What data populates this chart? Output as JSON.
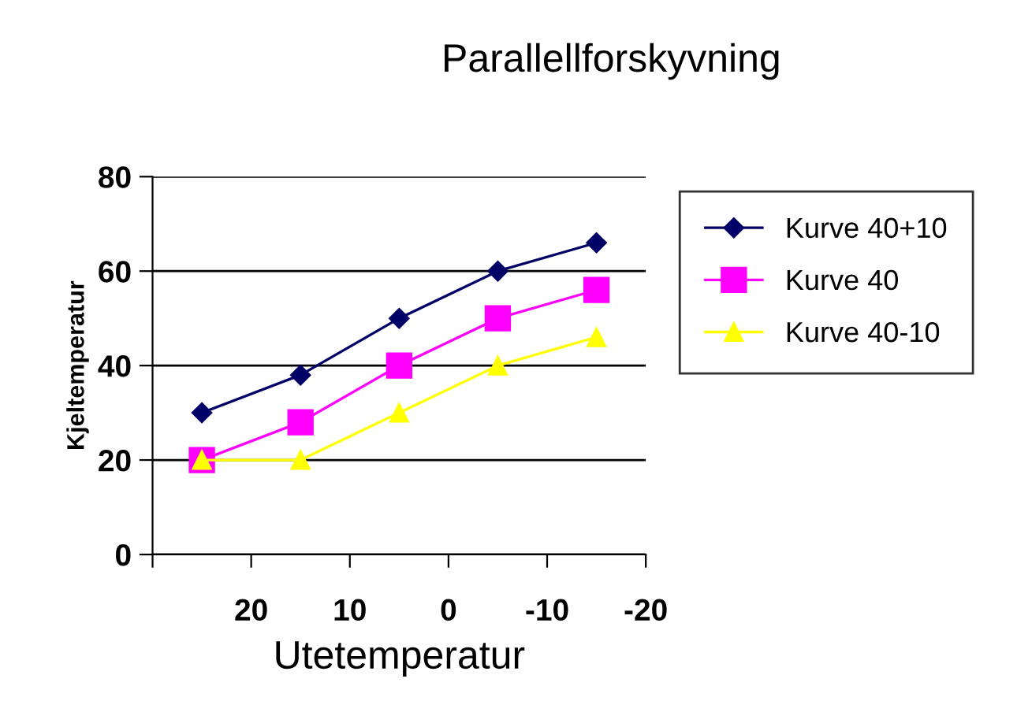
{
  "chart_data": {
    "type": "line",
    "title": "Parallellforskyvning",
    "xlabel": "Utetemperatur",
    "ylabel": "Kjeltemperatur",
    "x": [
      25,
      15,
      5,
      -5,
      -15
    ],
    "xlim": [
      30,
      -20
    ],
    "xticks": [
      {
        "value": 30,
        "label": null
      },
      20,
      10,
      0,
      -10,
      -20
    ],
    "ylim": [
      0,
      80
    ],
    "yticks": [
      0,
      20,
      40,
      60,
      80
    ],
    "grid": "y",
    "legend": "right",
    "series": [
      {
        "name": "Kurve 40+10",
        "color": "#000066",
        "marker": "diamond",
        "values": [
          30,
          38,
          50,
          60,
          66
        ]
      },
      {
        "name": "Kurve 40",
        "color": "#ff00ff",
        "marker": "square",
        "values": [
          20,
          28,
          40,
          50,
          56
        ]
      },
      {
        "name": "Kurve 40-10",
        "color": "#ffff00",
        "marker": "triangle",
        "values": [
          20,
          20,
          30,
          40,
          46
        ]
      }
    ]
  }
}
